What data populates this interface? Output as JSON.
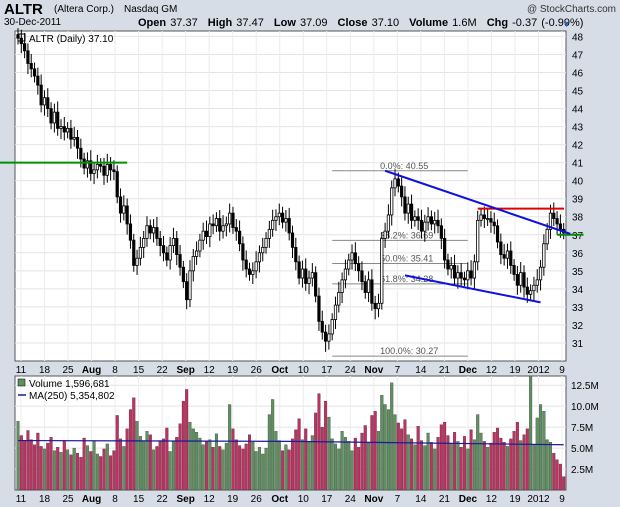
{
  "header": {
    "symbol": "ALTR",
    "company": "(Altera Corp.)",
    "exchange": "Nasdaq GM",
    "date": "30-Dec-2011",
    "watermark": "@ StockCharts.com",
    "open_label": "Open",
    "open": "37.37",
    "high_label": "High",
    "high": "37.47",
    "low_label": "Low",
    "low": "37.09",
    "close_label": "Close",
    "close": "37.10",
    "volume_label": "Volume",
    "volume": "1.6M",
    "chg_label": "Chg",
    "chg": "-0.37 (-0.99%)",
    "dropdown_icon": "triangle-down-icon"
  },
  "colors": {
    "background": "#d6dde6",
    "panel": "#ffffff",
    "up_volume": "#5f9060",
    "down_volume": "#c03060",
    "ma_line": "#1a1a9c",
    "trend_line": "#1010e0",
    "resistance": "#e00000",
    "support": "#009000",
    "fib": "#888888"
  },
  "chart_data": [
    {
      "type": "candlestick",
      "legend": "ALTR (Daily) 37.10",
      "y_ticks": [
        31,
        32,
        33,
        34,
        35,
        36,
        37,
        38,
        39,
        40,
        41,
        42,
        43,
        44,
        45,
        46,
        47,
        48
      ],
      "ylim": [
        30.0,
        48.3
      ],
      "x_tick_labels": [
        "11",
        "18",
        "25",
        "Aug",
        "8",
        "15",
        "22",
        "Sep",
        "12",
        "19",
        "26",
        "Oct",
        "10",
        "17",
        "24",
        "Nov",
        "7",
        "14",
        "21",
        "Dec",
        "12",
        "19",
        "2012",
        "9"
      ],
      "close_series_approx": [
        47.9,
        47.6,
        47.2,
        46.5,
        46.2,
        45.8,
        45.3,
        44.2,
        44.6,
        44.0,
        43.2,
        43.8,
        42.9,
        43.0,
        42.7,
        42.9,
        42.3,
        42.4,
        41.8,
        41.2,
        40.7,
        41.1,
        40.4,
        40.6,
        40.9,
        40.8,
        40.3,
        40.9,
        40.6,
        40.5,
        39.1,
        38.2,
        38.6,
        37.6,
        36.7,
        35.3,
        35.7,
        36.3,
        36.8,
        37.5,
        37.1,
        37.4,
        36.8,
        36.4,
        36.0,
        35.6,
        36.4,
        36.8,
        35.9,
        35.2,
        34.4,
        33.4,
        35.0,
        35.8,
        36.1,
        36.7,
        37.2,
        36.9,
        37.6,
        37.5,
        37.9,
        37.2,
        37.5,
        37.6,
        38.2,
        37.4,
        37.2,
        36.5,
        35.6,
        35.1,
        34.8,
        35.0,
        35.5,
        36.0,
        36.3,
        36.8,
        37.3,
        37.8,
        38.0,
        38.2,
        37.7,
        37.9,
        37.1,
        36.3,
        35.5,
        34.6,
        35.1,
        34.3,
        34.6,
        34.9,
        33.6,
        32.2,
        31.6,
        31.1,
        31.5,
        32.3,
        33.1,
        33.8,
        34.5,
        35.1,
        35.6,
        36.0,
        35.4,
        35.0,
        34.4,
        33.8,
        34.5,
        33.2,
        32.9,
        33.2,
        36.8,
        37.2,
        38.1,
        39.6,
        40.1,
        39.7,
        39.1,
        38.2,
        38.7,
        37.8,
        38.0,
        37.8,
        37.2,
        37.7,
        38.0,
        37.6,
        37.8,
        37.5,
        36.8,
        35.6,
        35.1,
        35.3,
        34.6,
        34.9,
        34.6,
        34.5,
        35.0,
        34.6,
        35.5,
        37.8,
        38.1,
        37.9,
        37.9,
        37.7,
        37.5,
        36.6,
        35.9,
        35.7,
        36.1,
        35.3,
        34.8,
        34.2,
        34.9,
        34.1,
        33.7,
        33.9,
        34.2,
        34.5,
        35.2,
        36.5,
        37.3,
        38.2,
        37.9,
        37.6,
        37.3,
        37.1
      ],
      "annotations": {
        "fibonacci": [
          {
            "label": "0.0%: 40.55",
            "price": 40.55
          },
          {
            "label": "38.2%: 36.69",
            "price": 36.69
          },
          {
            "label": "50.0%: 35.41",
            "price": 35.41
          },
          {
            "label": "61.8%: 34.28",
            "price": 34.28
          },
          {
            "label": "100.0%: 30.27",
            "price": 30.27
          }
        ],
        "support_line_left": 41.0,
        "resistance_line": 38.45,
        "support_line_right": 37.0,
        "upper_trendline": [
          40.55,
          37.05
        ],
        "lower_trendline": [
          34.75,
          33.25
        ]
      }
    },
    {
      "type": "bar",
      "legend_volume": "Volume 1,596,681",
      "legend_ma": "MA(250) 5,354,802",
      "y_tick_labels": [
        "2.5M",
        "5.0M",
        "7.5M",
        "10.0M",
        "12.5M"
      ],
      "ylim": [
        0,
        13.6
      ],
      "volume_millions_approx": [
        8.2,
        6.5,
        5.9,
        7.1,
        6.0,
        5.4,
        6.8,
        5.2,
        4.9,
        5.6,
        6.3,
        4.7,
        5.1,
        4.5,
        5.9,
        4.8,
        4.2,
        5.0,
        4.4,
        3.9,
        6.2,
        5.3,
        4.6,
        5.8,
        4.3,
        4.0,
        4.9,
        5.5,
        4.1,
        4.7,
        8.9,
        6.1,
        5.2,
        7.3,
        9.6,
        11.0,
        8.2,
        6.4,
        5.9,
        7.0,
        6.6,
        4.8,
        5.2,
        5.9,
        6.1,
        7.4,
        4.6,
        5.8,
        6.3,
        7.9,
        10.6,
        12.0,
        8.1,
        7.3,
        6.9,
        6.2,
        5.4,
        5.8,
        6.0,
        5.1,
        6.7,
        5.2,
        4.8,
        5.6,
        10.2,
        7.3,
        6.0,
        5.3,
        4.9,
        5.5,
        6.6,
        5.7,
        4.6,
        5.1,
        4.3,
        5.0,
        9.0,
        10.8,
        7.0,
        5.9,
        4.7,
        5.4,
        4.8,
        6.1,
        7.2,
        8.5,
        6.0,
        7.3,
        5.8,
        6.5,
        9.2,
        11.5,
        7.5,
        10.6,
        8.7,
        6.1,
        5.5,
        4.9,
        7.0,
        6.3,
        5.8,
        4.7,
        6.2,
        5.1,
        6.8,
        7.7,
        5.6,
        8.9,
        9.4,
        7.0,
        11.3,
        10.2,
        9.6,
        12.8,
        9.0,
        8.0,
        7.3,
        8.4,
        6.6,
        6.1,
        5.4,
        7.6,
        5.9,
        5.3,
        6.8,
        5.7,
        4.9,
        6.3,
        7.8,
        8.1,
        6.5,
        5.6,
        6.9,
        5.8,
        5.1,
        6.4,
        4.9,
        7.2,
        6.0,
        9.0,
        6.8,
        5.8,
        5.1,
        5.6,
        6.9,
        7.4,
        6.2,
        5.7,
        5.2,
        6.1,
        7.0,
        8.1,
        5.9,
        6.6,
        7.3,
        14.0,
        5.4,
        8.6,
        10.2,
        9.4,
        6.0,
        5.7,
        4.4,
        3.6,
        3.1,
        1.6
      ],
      "ma_approx_millions": [
        5.9,
        5.8,
        5.4
      ]
    }
  ]
}
